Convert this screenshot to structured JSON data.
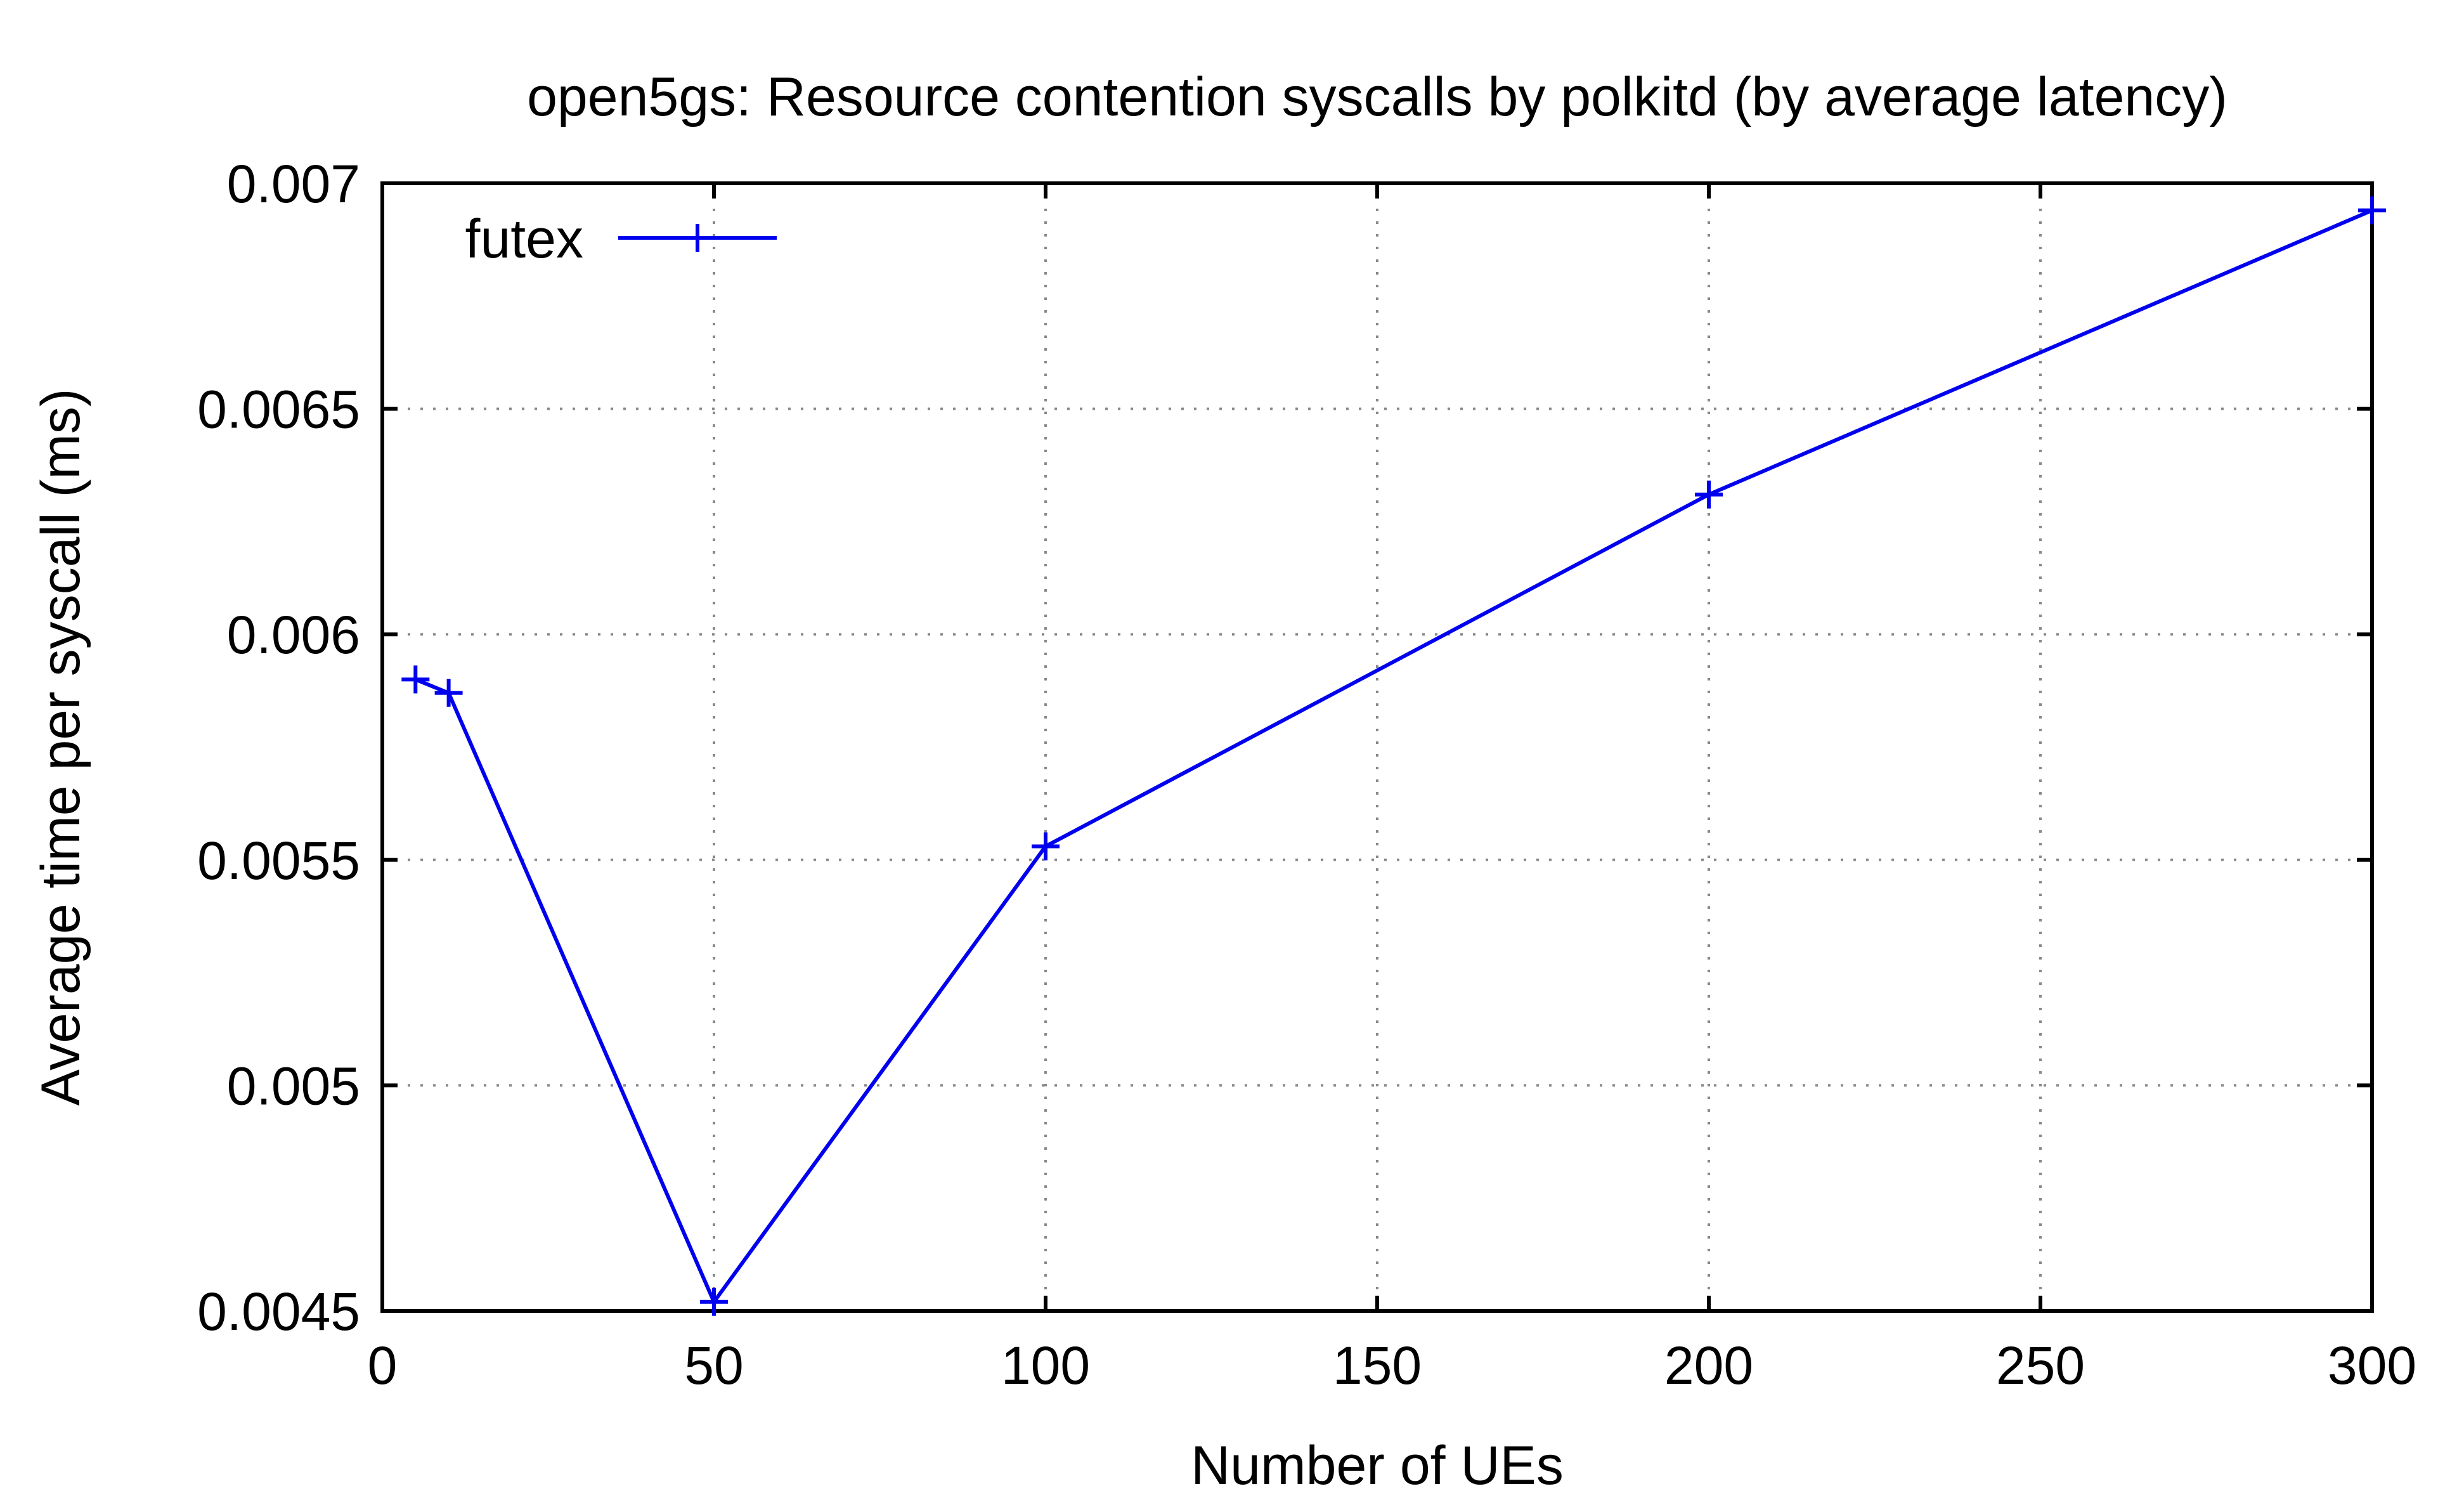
{
  "chart_data": {
    "type": "line",
    "title": "open5gs: Resource contention syscalls by polkitd (by average latency)",
    "xlabel": "Number of UEs",
    "ylabel": "Average time per syscall (ms)",
    "xlim": [
      0,
      300
    ],
    "ylim": [
      0.0045,
      0.007
    ],
    "xticks": [
      "0",
      "50",
      "100",
      "150",
      "200",
      "250",
      "300"
    ],
    "yticks": [
      "0.0045",
      "0.005",
      "0.0055",
      "0.006",
      "0.0065",
      "0.007"
    ],
    "grid": true,
    "legend_position": "top-left",
    "series": [
      {
        "name": "futex",
        "color": "#0000ee",
        "marker": "plus",
        "x": [
          5,
          10,
          50,
          100,
          200,
          300
        ],
        "y": [
          0.0059,
          0.00587,
          0.00452,
          0.00553,
          0.00631,
          0.00694
        ]
      }
    ]
  }
}
